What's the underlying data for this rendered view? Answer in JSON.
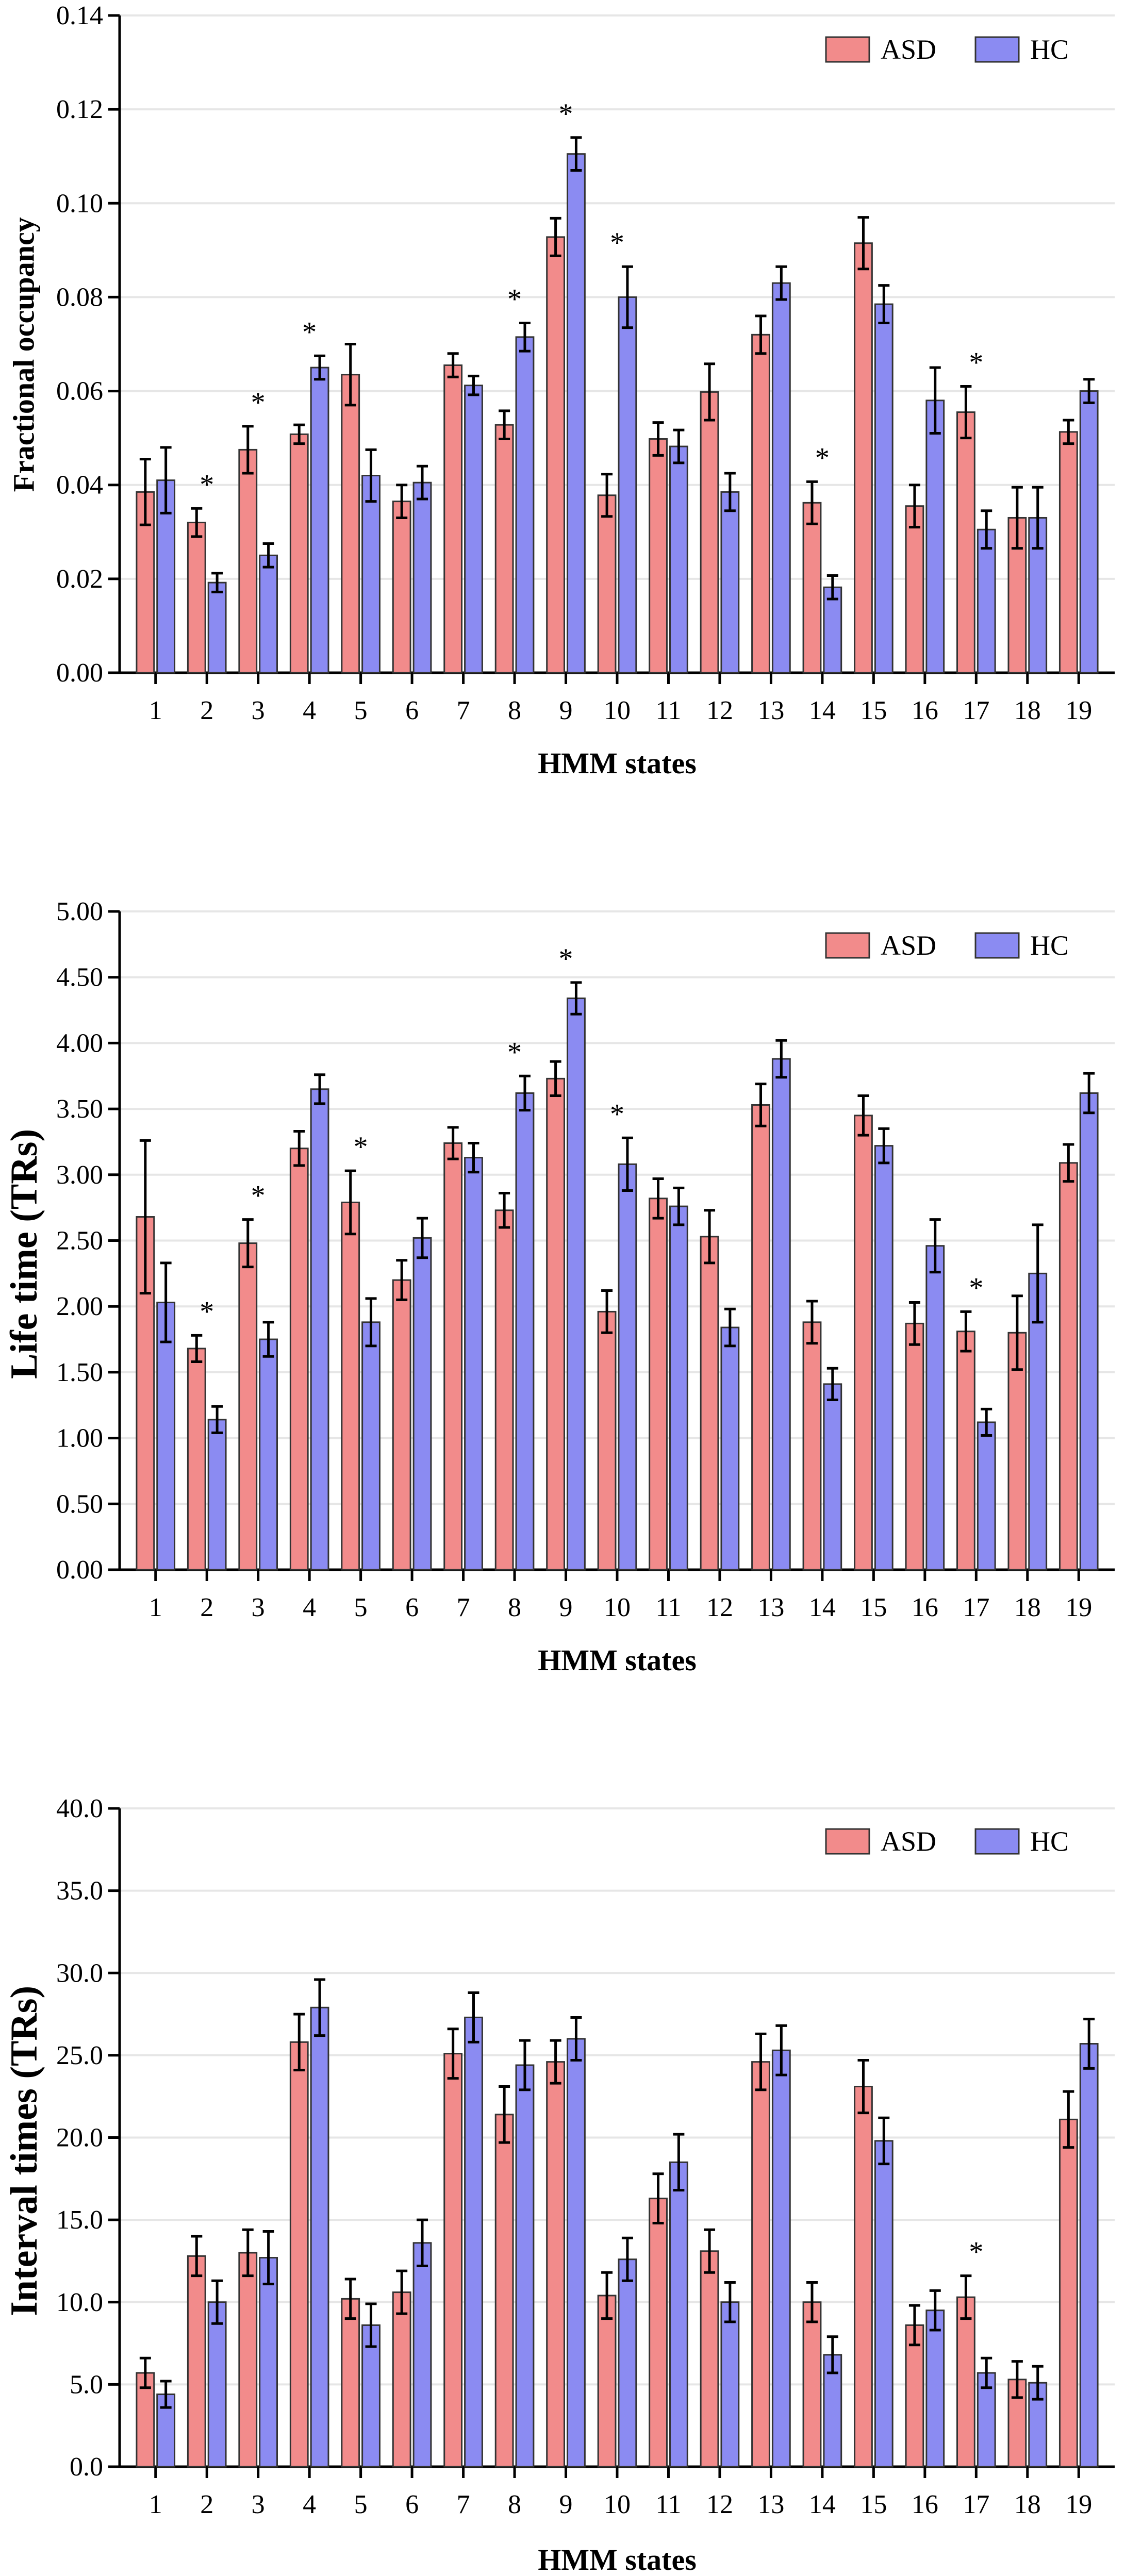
{
  "colors": {
    "asd": "#f28b8b",
    "hc": "#8b8bf2",
    "bar_stroke": "#333333"
  },
  "chart_data": [
    {
      "type": "bar",
      "ylabel": "Fractional occupancy",
      "xlabel": "HMM states",
      "ylim": [
        0,
        0.14
      ],
      "yticks": [
        "0.00",
        "0.02",
        "0.04",
        "0.06",
        "0.08",
        "0.10",
        "0.12",
        "0.14"
      ],
      "ytick_values": [
        0,
        0.02,
        0.04,
        0.06,
        0.08,
        0.1,
        0.12,
        0.14
      ],
      "categories": [
        "1",
        "2",
        "3",
        "4",
        "5",
        "6",
        "7",
        "8",
        "9",
        "10",
        "11",
        "12",
        "13",
        "14",
        "15",
        "16",
        "17",
        "18",
        "19"
      ],
      "legend": {
        "position": "top-right",
        "entries": [
          "ASD",
          "HC"
        ]
      },
      "series": [
        {
          "name": "ASD",
          "values": [
            0.0385,
            0.032,
            0.0475,
            0.0508,
            0.0635,
            0.0365,
            0.0655,
            0.0528,
            0.0928,
            0.0378,
            0.0498,
            0.0598,
            0.072,
            0.0362,
            0.0915,
            0.0355,
            0.0555,
            0.033,
            0.0513
          ],
          "errors": [
            0.007,
            0.003,
            0.005,
            0.002,
            0.0065,
            0.0035,
            0.0025,
            0.003,
            0.004,
            0.0045,
            0.0035,
            0.006,
            0.004,
            0.0045,
            0.0055,
            0.0045,
            0.0055,
            0.0065,
            0.0025
          ]
        },
        {
          "name": "HC",
          "values": [
            0.041,
            0.0192,
            0.025,
            0.065,
            0.042,
            0.0405,
            0.0612,
            0.0715,
            0.1105,
            0.08,
            0.0482,
            0.0385,
            0.083,
            0.0182,
            0.0785,
            0.058,
            0.0305,
            0.033,
            0.06
          ],
          "errors": [
            0.007,
            0.002,
            0.0025,
            0.0025,
            0.0055,
            0.0035,
            0.002,
            0.003,
            0.0035,
            0.0065,
            0.0035,
            0.004,
            0.0035,
            0.0025,
            0.004,
            0.007,
            0.004,
            0.0065,
            0.0025
          ]
        }
      ],
      "significant": [
        "2",
        "3",
        "4",
        "8",
        "9",
        "10",
        "14",
        "17"
      ]
    },
    {
      "type": "bar",
      "ylabel": "Life time (TRs)",
      "xlabel": "HMM states",
      "ylim": [
        0,
        5.0
      ],
      "yticks": [
        "0.00",
        "0.50",
        "1.00",
        "1.50",
        "2.00",
        "2.50",
        "3.00",
        "3.50",
        "4.00",
        "4.50",
        "5.00"
      ],
      "ytick_values": [
        0,
        0.5,
        1.0,
        1.5,
        2.0,
        2.5,
        3.0,
        3.5,
        4.0,
        4.5,
        5.0
      ],
      "categories": [
        "1",
        "2",
        "3",
        "4",
        "5",
        "6",
        "7",
        "8",
        "9",
        "10",
        "11",
        "12",
        "13",
        "14",
        "15",
        "16",
        "17",
        "18",
        "19"
      ],
      "legend": {
        "position": "top-right",
        "entries": [
          "ASD",
          "HC"
        ]
      },
      "series": [
        {
          "name": "ASD",
          "values": [
            2.68,
            1.68,
            2.48,
            3.2,
            2.79,
            2.2,
            3.24,
            2.73,
            3.73,
            1.96,
            2.82,
            2.53,
            3.53,
            1.88,
            3.45,
            1.87,
            1.81,
            1.8,
            3.09
          ],
          "errors": [
            0.58,
            0.1,
            0.18,
            0.13,
            0.24,
            0.15,
            0.12,
            0.13,
            0.13,
            0.16,
            0.15,
            0.2,
            0.16,
            0.16,
            0.15,
            0.16,
            0.15,
            0.28,
            0.14
          ]
        },
        {
          "name": "HC",
          "values": [
            2.03,
            1.14,
            1.75,
            3.65,
            1.88,
            2.52,
            3.13,
            3.62,
            4.34,
            3.08,
            2.76,
            1.84,
            3.88,
            1.41,
            3.22,
            2.46,
            1.12,
            2.25,
            3.62
          ],
          "errors": [
            0.3,
            0.1,
            0.13,
            0.11,
            0.18,
            0.15,
            0.11,
            0.13,
            0.12,
            0.2,
            0.14,
            0.14,
            0.14,
            0.12,
            0.13,
            0.2,
            0.1,
            0.37,
            0.15
          ]
        }
      ],
      "significant": [
        "2",
        "3",
        "5",
        "8",
        "9",
        "10",
        "17"
      ]
    },
    {
      "type": "bar",
      "ylabel": "Interval times (TRs)",
      "xlabel": "HMM states",
      "ylim": [
        0,
        40.0
      ],
      "yticks": [
        "0.0",
        "5.0",
        "10.0",
        "15.0",
        "20.0",
        "25.0",
        "30.0",
        "35.0",
        "40.0"
      ],
      "ytick_values": [
        0,
        5,
        10,
        15,
        20,
        25,
        30,
        35,
        40
      ],
      "categories": [
        "1",
        "2",
        "3",
        "4",
        "5",
        "6",
        "7",
        "8",
        "9",
        "10",
        "11",
        "12",
        "13",
        "14",
        "15",
        "16",
        "17",
        "18",
        "19"
      ],
      "legend": {
        "position": "top-right",
        "entries": [
          "ASD",
          "HC"
        ]
      },
      "series": [
        {
          "name": "ASD",
          "values": [
            5.7,
            12.8,
            13.0,
            25.8,
            10.2,
            10.6,
            25.1,
            21.4,
            24.6,
            10.4,
            16.3,
            13.1,
            24.6,
            10.0,
            23.1,
            8.6,
            10.3,
            5.3,
            21.1
          ],
          "errors": [
            0.9,
            1.2,
            1.4,
            1.7,
            1.2,
            1.3,
            1.5,
            1.7,
            1.3,
            1.4,
            1.5,
            1.3,
            1.7,
            1.2,
            1.6,
            1.2,
            1.3,
            1.1,
            1.7
          ]
        },
        {
          "name": "HC",
          "values": [
            4.4,
            10.0,
            12.7,
            27.9,
            8.6,
            13.6,
            27.3,
            24.4,
            26.0,
            12.6,
            18.5,
            10.0,
            25.3,
            6.8,
            19.8,
            9.5,
            5.7,
            5.1,
            25.7
          ],
          "errors": [
            0.8,
            1.3,
            1.6,
            1.7,
            1.3,
            1.4,
            1.5,
            1.5,
            1.3,
            1.3,
            1.7,
            1.2,
            1.5,
            1.1,
            1.4,
            1.2,
            0.9,
            1.0,
            1.5
          ]
        }
      ],
      "significant": [
        "17"
      ]
    }
  ]
}
